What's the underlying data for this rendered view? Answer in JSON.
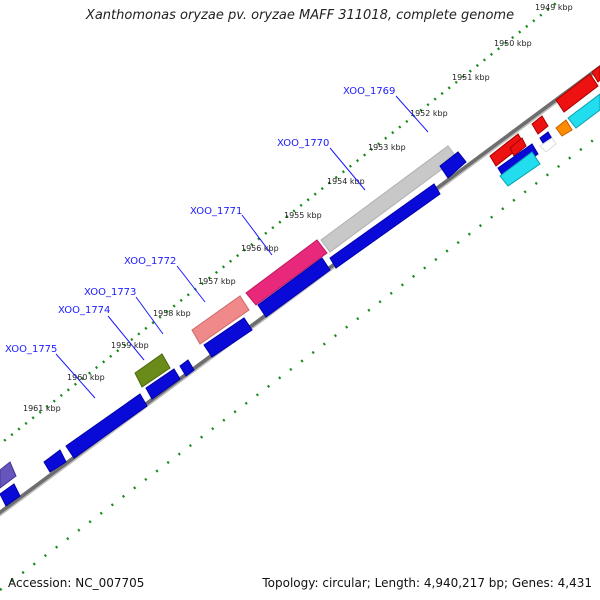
{
  "title": "Xanthomonas oryzae pv. oryzae MAFF 311018, complete genome",
  "footer": {
    "accession": "Accession: NC_007705",
    "summary": "Topology: circular; Length: 4,940,217 bp; Genes: 4,431"
  },
  "scale_labels": [
    "1949 kbp",
    "1950 kbp",
    "1951 kbp",
    "1952 kbp",
    "1953 kbp",
    "1954 kbp",
    "1955 kbp",
    "1956 kbp",
    "1957 kbp",
    "1958 kbp",
    "1959 kbp",
    "1960 kbp",
    "1961 kbp"
  ],
  "gene_labels": [
    "XOO_1769",
    "XOO_1770",
    "XOO_1771",
    "XOO_1772",
    "XOO_1773",
    "XOO_1774",
    "XOO_1775"
  ],
  "colors": {
    "backbone": "#6e6e6e",
    "tick_dots": "#1a8a1a",
    "label_blue": "#1a1aff",
    "gene_blue": "#0a0ad8",
    "gene_gray": "#c8c8c8",
    "gene_pink": "#e8287a",
    "gene_salmon": "#f08a8a",
    "gene_olive": "#6a8a1a",
    "gene_red": "#ee1111",
    "gene_cyan": "#22ddee",
    "gene_orange": "#ff8c00",
    "gene_violet": "#6655bb"
  }
}
